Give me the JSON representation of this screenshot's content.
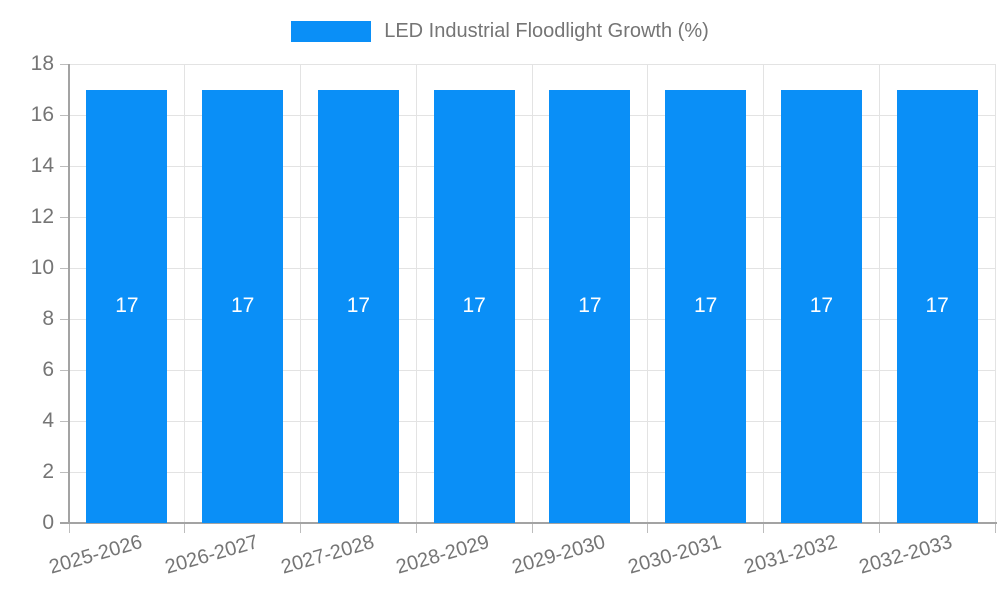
{
  "legend": {
    "label": "LED Industrial Floodlight Growth (%)"
  },
  "chart_data": {
    "type": "bar",
    "title": "LED Industrial Floodlight Growth (%)",
    "categories": [
      "2025-2026",
      "2026-2027",
      "2027-2028",
      "2028-2029",
      "2029-2030",
      "2030-2031",
      "2031-2032",
      "2032-2033"
    ],
    "values": [
      17,
      17,
      17,
      17,
      17,
      17,
      17,
      17
    ],
    "bar_value_labels": [
      "17",
      "17",
      "17",
      "17",
      "17",
      "17",
      "17",
      "17"
    ],
    "ytick_labels": [
      "0",
      "2",
      "4",
      "6",
      "8",
      "10",
      "12",
      "14",
      "16",
      "18"
    ],
    "ylim": [
      0,
      18
    ],
    "ytick_step": 2,
    "xlabel": "",
    "ylabel": "",
    "grid": true,
    "legend_position": "top-center",
    "x_label_rotation_deg": -16,
    "colors": {
      "bar": "#0A8FF7",
      "bar_label": "#FFFFFF",
      "axis_label": "#757575",
      "grid_line": "#E3E3E3",
      "tick": "#BDBDBD",
      "axis_line": "#A3A3A3",
      "background": "#FFFFFF"
    }
  }
}
